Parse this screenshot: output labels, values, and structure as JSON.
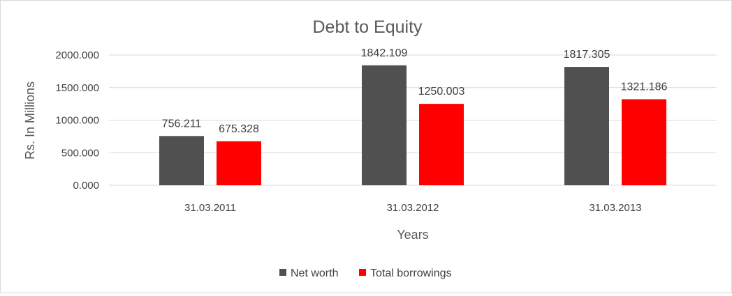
{
  "chart_data": {
    "type": "bar",
    "title": "Debt to Equity",
    "xlabel": "Years",
    "ylabel": "Rs. In Millions",
    "categories": [
      "31.03.2011",
      "31.03.2012",
      "31.03.2013"
    ],
    "series": [
      {
        "name": "Net worth",
        "color": "#505050",
        "values": [
          756.211,
          1842.109,
          1817.305
        ]
      },
      {
        "name": "Total borrowings",
        "color": "#ff0000",
        "values": [
          675.328,
          1250.003,
          1321.186
        ]
      }
    ],
    "ylim": [
      0,
      2000
    ],
    "yticks": [
      "0.000",
      "500.000",
      "1000.000",
      "1500.000",
      "2000.000"
    ],
    "data_labels": [
      [
        "756.211",
        "1842.109",
        "1817.305"
      ],
      [
        "675.328",
        "1250.003",
        "1321.186"
      ]
    ],
    "grid": true,
    "legend_position": "bottom"
  }
}
